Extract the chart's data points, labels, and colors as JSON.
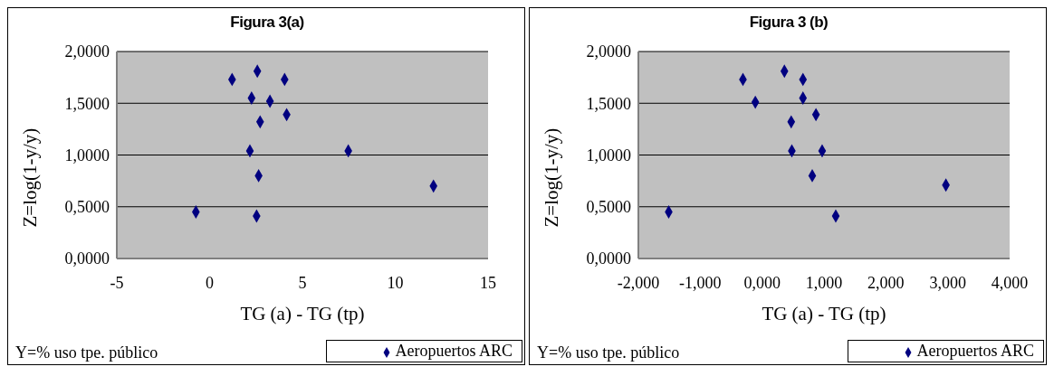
{
  "chart_data": [
    {
      "type": "scatter",
      "title": "Figura 3(a)",
      "xlabel": "TG (a) - TG (tp)",
      "ylabel": "Z=log(1-y/y)",
      "annotations": [
        "Y=% uso tpe. público"
      ],
      "series": [
        {
          "name": "Aeropuertos ARC",
          "color": "#000080",
          "x": [
            1.21,
            2.57,
            4.04,
            2.26,
            3.25,
            4.15,
            2.72,
            2.17,
            7.47,
            2.64,
            12.06,
            -0.74,
            2.53
          ],
          "values": [
            1.73,
            1.81,
            1.73,
            1.55,
            1.52,
            1.39,
            1.32,
            1.04,
            1.04,
            0.8,
            0.7,
            0.45,
            0.41
          ]
        }
      ],
      "xlim": [
        -5,
        15
      ],
      "xticks": [
        -5,
        0,
        5,
        10,
        15
      ],
      "ylim": [
        0,
        2
      ],
      "yticks": [
        {
          "value": 0,
          "label": "0,0000"
        },
        {
          "value": 0.5,
          "label": "0,5000"
        },
        {
          "value": 1,
          "label": "1,0000"
        },
        {
          "value": 1.5,
          "label": "1,5000"
        },
        {
          "value": 2,
          "label": "2,0000"
        }
      ],
      "grid": "y",
      "legend": "bottom right",
      "marker": "diamond"
    },
    {
      "type": "scatter",
      "title": "Figura 3 (b)",
      "xlabel": "TG (a) - TG (tp)",
      "ylabel": "Z=log(1-y/y)",
      "annotations": [
        "Y=% uso tpe. público"
      ],
      "series": [
        {
          "name": "Aeropuertos ARC",
          "color": "#000080",
          "x": [
            -0.31,
            0.36,
            0.66,
            -0.11,
            0.66,
            0.87,
            0.47,
            0.48,
            0.97,
            0.81,
            2.97,
            -1.51,
            1.19
          ],
          "values": [
            1.73,
            1.81,
            1.73,
            1.51,
            1.55,
            1.39,
            1.32,
            1.04,
            1.04,
            0.8,
            0.71,
            0.45,
            0.41
          ]
        }
      ],
      "xlim": [
        -2,
        4
      ],
      "xticks": [
        {
          "value": -2,
          "label": "-2,000"
        },
        {
          "value": -1,
          "label": "-1,000"
        },
        {
          "value": 0,
          "label": "0,000"
        },
        {
          "value": 1,
          "label": "1,000"
        },
        {
          "value": 2,
          "label": "2,000"
        },
        {
          "value": 3,
          "label": "3,000"
        },
        {
          "value": 4,
          "label": "4,000"
        }
      ],
      "ylim": [
        0,
        2
      ],
      "yticks": [
        {
          "value": 0,
          "label": "0,0000"
        },
        {
          "value": 0.5,
          "label": "0,5000"
        },
        {
          "value": 1,
          "label": "1,0000"
        },
        {
          "value": 1.5,
          "label": "1,5000"
        },
        {
          "value": 2,
          "label": "2,0000"
        }
      ],
      "grid": "y",
      "legend": "bottom right",
      "marker": "diamond"
    }
  ]
}
